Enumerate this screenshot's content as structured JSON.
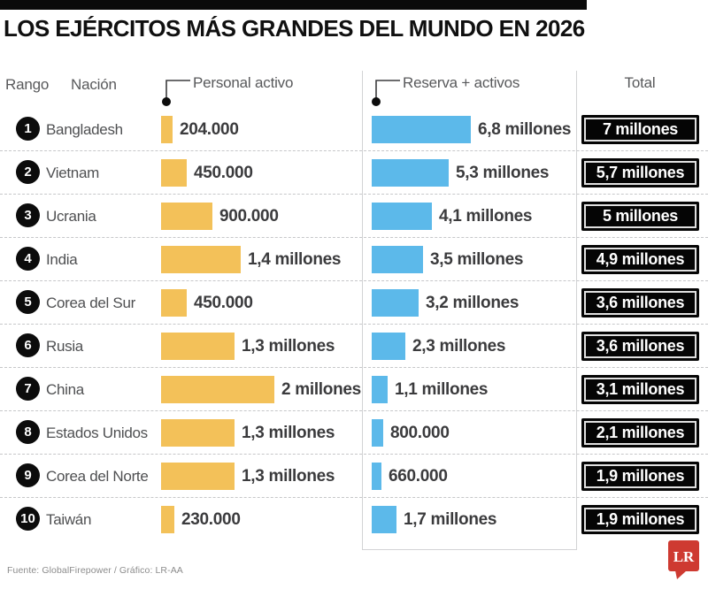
{
  "title": "LOS EJÉRCITOS MÁS GRANDES DEL MUNDO EN 2026",
  "header": {
    "rank": "Rango",
    "nation": "Nación",
    "active": "Personal activo",
    "reserve": "Reserva + activos",
    "total": "Total"
  },
  "rows": [
    {
      "rank": "1",
      "nation": "Bangladesh",
      "active_label": "204.000",
      "reserve_label": "6,8 millones",
      "total_label": "7 millones"
    },
    {
      "rank": "2",
      "nation": "Vietnam",
      "active_label": "450.000",
      "reserve_label": "5,3 millones",
      "total_label": "5,7 millones"
    },
    {
      "rank": "3",
      "nation": "Ucrania",
      "active_label": "900.000",
      "reserve_label": "4,1 millones",
      "total_label": "5 millones"
    },
    {
      "rank": "4",
      "nation": "India",
      "active_label": "1,4 millones",
      "reserve_label": "3,5 millones",
      "total_label": "4,9 millones"
    },
    {
      "rank": "5",
      "nation": "Corea del Sur",
      "active_label": "450.000",
      "reserve_label": "3,2 millones",
      "total_label": "3,6 millones"
    },
    {
      "rank": "6",
      "nation": "Rusia",
      "active_label": "1,3 millones",
      "reserve_label": "2,3 millones",
      "total_label": "3,6 millones"
    },
    {
      "rank": "7",
      "nation": "China",
      "active_label": "2 millones",
      "reserve_label": "1,1 millones",
      "total_label": "3,1 millones"
    },
    {
      "rank": "8",
      "nation": "Estados Unidos",
      "active_label": "1,3 millones",
      "reserve_label": "800.000",
      "total_label": "2,1 millones"
    },
    {
      "rank": "9",
      "nation": "Corea del Norte",
      "active_label": "1,3 millones",
      "reserve_label": "660.000",
      "total_label": "1,9 millones"
    },
    {
      "rank": "10",
      "nation": "Taiwán",
      "active_label": "230.000",
      "reserve_label": "1,7 millones",
      "total_label": "1,9 millones"
    }
  ],
  "chart_data": {
    "type": "bar",
    "title": "LOS EJÉRCITOS MÁS GRANDES DEL MUNDO EN 2026",
    "categories": [
      "Bangladesh",
      "Vietnam",
      "Ucrania",
      "India",
      "Corea del Sur",
      "Rusia",
      "China",
      "Estados Unidos",
      "Corea del Norte",
      "Taiwán"
    ],
    "series": [
      {
        "name": "Personal activo",
        "color": "#F3C159",
        "values": [
          204000,
          450000,
          900000,
          1400000,
          450000,
          1300000,
          2000000,
          1300000,
          1300000,
          230000
        ],
        "labels": [
          "204.000",
          "450.000",
          "900.000",
          "1,4 millones",
          "450.000",
          "1,3 millones",
          "2 millones",
          "1,3 millones",
          "1,3 millones",
          "230.000"
        ]
      },
      {
        "name": "Reserva + activos",
        "color": "#5CB9EA",
        "values": [
          6800000,
          5300000,
          4100000,
          3500000,
          3200000,
          2300000,
          1100000,
          800000,
          660000,
          1700000
        ],
        "labels": [
          "6,8 millones",
          "5,3 millones",
          "4,1 millones",
          "3,5 millones",
          "3,2 millones",
          "2,3 millones",
          "1,1 millones",
          "800.000",
          "660.000",
          "1,7 millones"
        ]
      },
      {
        "name": "Total",
        "color": "#000000",
        "values": [
          7000000,
          5700000,
          5000000,
          4900000,
          3600000,
          3600000,
          3100000,
          2100000,
          1900000,
          1900000
        ],
        "labels": [
          "7 millones",
          "5,7 millones",
          "5 millones",
          "4,9 millones",
          "3,6 millones",
          "3,6 millones",
          "3,1 millones",
          "2,1 millones",
          "1,9 millones",
          "1,9 millones"
        ]
      }
    ],
    "orientation": "horizontal",
    "grid": false,
    "legend_position": "column-headers"
  },
  "footer": {
    "source": "Fuente: GlobalFirepower / Gráfico: LR-AA",
    "logo_text": "LR"
  },
  "colors": {
    "active_bar": "#F3C159",
    "reserve_bar": "#5CB9EA",
    "badge_bg": "#050505",
    "badge_text": "#FFFFFF",
    "logo_red": "#CE3A31",
    "accent_bar": "#0A0A0A"
  }
}
